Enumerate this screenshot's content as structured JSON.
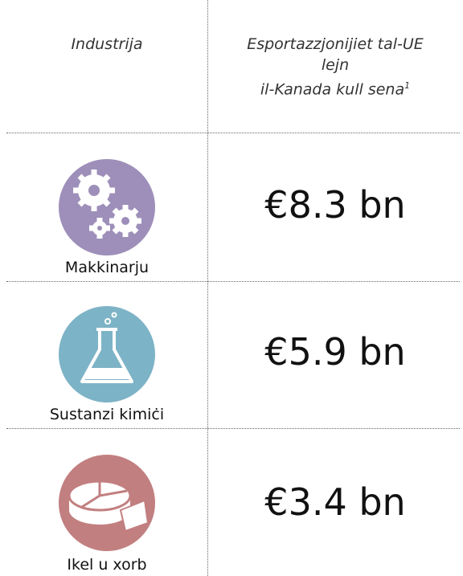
{
  "header": {
    "industry": "Industrija",
    "exports_lines": [
      "Esportazzjonijiet tal-UE",
      "lejn",
      "il-Kanada kull sena"
    ],
    "exports_note": "1"
  },
  "rows": [
    {
      "label": "Makkinarju",
      "value": "€8.3 bn"
    },
    {
      "label": "Sustanzi kimiċi",
      "value": "€5.9 bn"
    },
    {
      "label": "Ikel u xorb",
      "value": "€3.4 bn"
    }
  ]
}
